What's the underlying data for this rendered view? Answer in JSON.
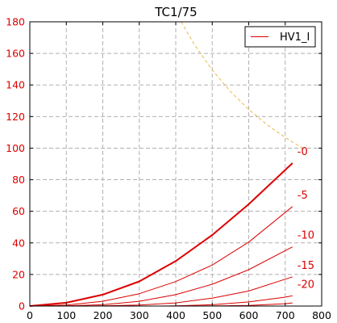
{
  "chart_data": {
    "type": "line",
    "title": "TC1/75",
    "xlabel": "",
    "ylabel": "",
    "xlim": [
      0,
      800
    ],
    "ylim": [
      0,
      180
    ],
    "x_ticks": [
      0,
      100,
      200,
      300,
      400,
      500,
      600,
      700,
      800
    ],
    "y_ticks": [
      0,
      20,
      40,
      60,
      80,
      100,
      120,
      140,
      160,
      180
    ],
    "grid": true,
    "legend": {
      "position": "top-right",
      "entries": [
        "HV1_I"
      ]
    },
    "colors": {
      "curve": "#dd0000",
      "tick_label": "#dd0000",
      "dissipation": "#e8b84a",
      "grid": "#b0b0b0"
    },
    "series": [
      {
        "name": "HV1_I",
        "grid_voltage_label": "-0",
        "x": [
          0,
          100,
          200,
          300,
          400,
          500,
          600,
          720
        ],
        "y": [
          0,
          2.1,
          7.2,
          15.6,
          28.5,
          45,
          64.5,
          90.5
        ]
      },
      {
        "grid_voltage_label": "-5",
        "x": [
          0,
          100,
          200,
          300,
          400,
          500,
          600,
          720
        ],
        "y": [
          0,
          0.6,
          3,
          7.8,
          15.5,
          26,
          40.5,
          63
        ]
      },
      {
        "grid_voltage_label": "-10",
        "x": [
          50,
          100,
          200,
          300,
          400,
          500,
          600,
          720
        ],
        "y": [
          0,
          0.1,
          0.8,
          3,
          7.2,
          13.8,
          23,
          37.5
        ]
      },
      {
        "grid_voltage_label": "-15",
        "x": [
          150,
          200,
          300,
          400,
          500,
          600,
          720
        ],
        "y": [
          0,
          0.1,
          0.6,
          2,
          5,
          9.5,
          18.5
        ]
      },
      {
        "grid_voltage_label": "-20",
        "x": [
          350,
          400,
          500,
          600,
          700,
          720
        ],
        "y": [
          0,
          0.1,
          0.8,
          2.6,
          5.6,
          6.5
        ]
      },
      {
        "grid_voltage_label": "",
        "x": [
          450,
          500,
          600,
          700,
          720
        ],
        "y": [
          0,
          0.05,
          0.4,
          1.5,
          2
        ]
      }
    ],
    "dissipation_curve": {
      "x": [
        415,
        450,
        500,
        550,
        600,
        650,
        700,
        750
      ],
      "y": [
        180,
        166,
        149.4,
        135.8,
        124.5,
        114.9,
        106.7,
        99.6
      ]
    }
  }
}
